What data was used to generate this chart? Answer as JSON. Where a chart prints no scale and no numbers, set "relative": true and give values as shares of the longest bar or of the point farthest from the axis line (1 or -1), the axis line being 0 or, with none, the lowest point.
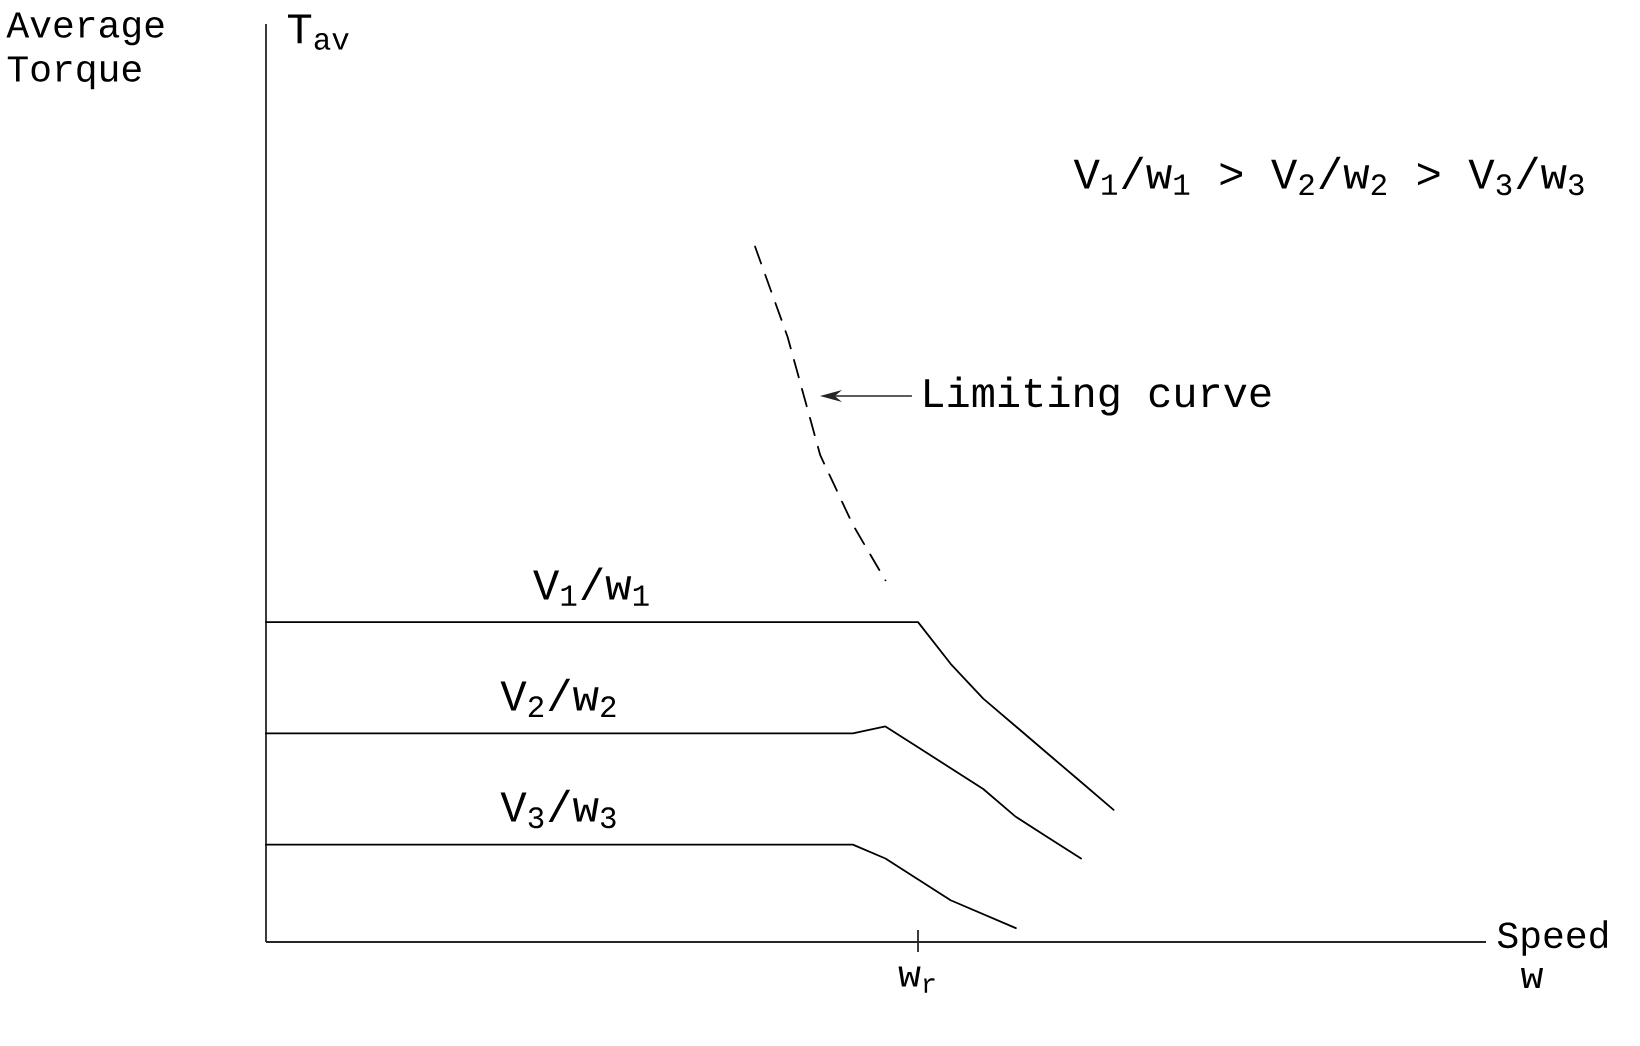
{
  "chart_data": {
    "type": "line",
    "relative": true,
    "ylabel": "Average Torque",
    "legend": false,
    "marker": "none",
    "line_style": "solid",
    "categories": [
      null,
      null,
      null,
      null,
      null,
      null,
      null,
      null,
      null,
      null,
      null,
      null,
      null,
      null,
      null,
      null,
      null,
      null,
      null,
      null,
      null,
      null,
      null,
      null,
      null,
      null,
      null,
      null
    ],
    "series": [
      {
        "name": "V$_{1}$/w$_{1}$",
        "color": "#000000",
        "values": [
          0.46,
          0.46,
          0.46,
          0.46,
          0.46,
          0.46,
          0.46,
          0.46,
          0.46,
          0.46,
          0.46,
          0.46,
          0.46,
          0.46,
          0.46,
          0.46,
          0.46,
          0.46,
          0.46,
          0.46,
          0.46,
          0.4,
          0.35,
          0.31,
          0.27,
          0.23,
          0.19,
          null
        ]
      },
      {
        "name": "V$_{2}$/w$_{2}$",
        "color": "#000000",
        "values": [
          0.3,
          0.3,
          0.3,
          0.3,
          0.3,
          0.3,
          0.3,
          0.3,
          0.3,
          0.3,
          0.3,
          0.3,
          0.3,
          0.3,
          0.3,
          0.3,
          0.3,
          0.3,
          0.3,
          0.31,
          0.28,
          0.25,
          0.22,
          0.18,
          0.15,
          0.12,
          null,
          null
        ]
      },
      {
        "name": "V$_{3}$/w$_{3}$",
        "color": "#000000",
        "values": [
          0.14,
          0.14,
          0.14,
          0.14,
          0.14,
          0.14,
          0.14,
          0.14,
          0.14,
          0.14,
          0.14,
          0.14,
          0.14,
          0.14,
          0.14,
          0.14,
          0.14,
          0.14,
          0.14,
          0.12,
          0.09,
          0.06,
          0.04,
          0.02,
          null,
          null,
          null,
          null
        ]
      },
      {
        "name": "Limiting curve",
        "color": "#000000",
        "line_style": "dashed",
        "values": [
          null,
          null,
          null,
          null,
          null,
          null,
          null,
          null,
          null,
          null,
          null,
          null,
          null,
          null,
          null,
          1,
          0.87,
          0.7,
          0.6,
          0.52,
          null,
          null,
          null,
          null,
          null,
          null,
          null,
          null
        ]
      }
    ],
    "annotations": [
      "V$_{1}$/w$_{1}$ > V$_{2}$/w$_{2}$ > V$_{3}$/w$_{3}$",
      "T$_{av}$",
      "Speed",
      "w",
      "w$_{r}$"
    ]
  }
}
